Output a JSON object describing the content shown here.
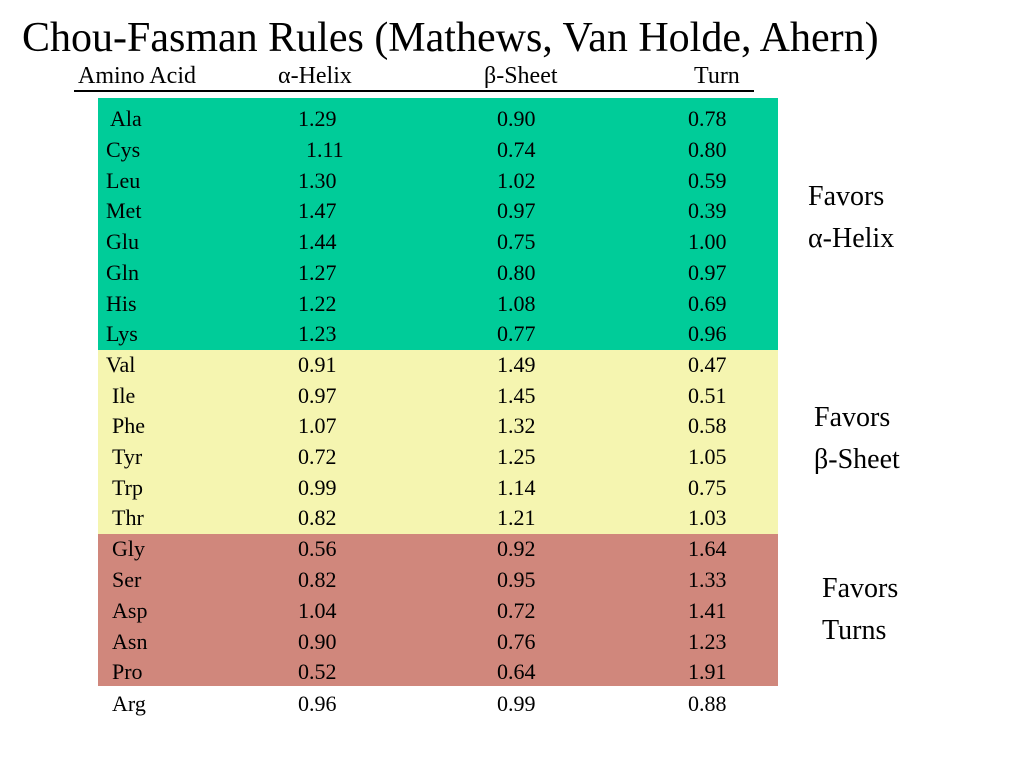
{
  "title": "Chou-Fasman Rules (Mathews, Van Holde, Ahern)",
  "headers": [
    "Amino Acid",
    "α-Helix",
    "β-Sheet",
    "Turn"
  ],
  "colors": {
    "helix": "#00cc99",
    "sheet": "#f5f5b0",
    "turn": "#d0877c"
  },
  "rows": [
    [
      "Ala",
      "1.29",
      "0.90",
      "0.78"
    ],
    [
      "Cys",
      "1.11",
      "0.74",
      "0.80"
    ],
    [
      "Leu",
      "1.30",
      "1.02",
      "0.59"
    ],
    [
      "Met",
      "1.47",
      "0.97",
      "0.39"
    ],
    [
      "Glu",
      "1.44",
      "0.75",
      "1.00"
    ],
    [
      "Gln",
      "1.27",
      "0.80",
      "0.97"
    ],
    [
      "His",
      "1.22",
      "1.08",
      "0.69"
    ],
    [
      "Lys",
      "1.23",
      "0.77",
      "0.96"
    ],
    [
      "Val",
      "0.91",
      "1.49",
      "0.47"
    ],
    [
      "Ile",
      "0.97",
      "1.45",
      "0.51"
    ],
    [
      "Phe",
      "1.07",
      "1.32",
      "0.58"
    ],
    [
      "Tyr",
      "0.72",
      "1.25",
      "1.05"
    ],
    [
      "Trp",
      "0.99",
      "1.14",
      "0.75"
    ],
    [
      "Thr",
      "0.82",
      "1.21",
      "1.03"
    ],
    [
      "Gly",
      "0.56",
      "0.92",
      "1.64"
    ],
    [
      "Ser",
      "0.82",
      "0.95",
      "1.33"
    ],
    [
      "Asp",
      "1.04",
      "0.72",
      "1.41"
    ],
    [
      "Asn",
      "0.90",
      "0.76",
      "1.23"
    ],
    [
      "Pro",
      "0.52",
      "0.64",
      "1.91"
    ],
    [
      "Arg",
      "0.96",
      "0.99",
      "0.88"
    ]
  ],
  "favors": {
    "helix": [
      "Favors",
      "α-Helix"
    ],
    "sheet": [
      "Favors",
      "β-Sheet"
    ],
    "turn": [
      "Favors",
      "Turns"
    ]
  }
}
